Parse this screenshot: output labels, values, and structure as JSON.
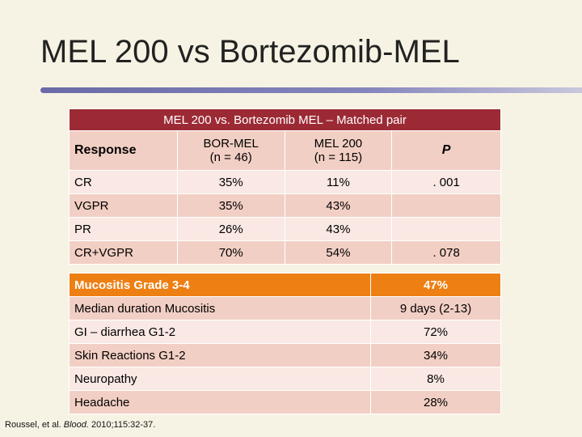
{
  "slide": {
    "title": "MEL 200 vs Bortezomib-MEL"
  },
  "response_table": {
    "caption": "MEL 200 vs. Bortezomib MEL – Matched pair",
    "headers": {
      "response": "Response",
      "bor_name": "BOR-MEL",
      "bor_n": "(n = 46)",
      "mel_name": "MEL 200",
      "mel_n": "(n = 115)",
      "p": "P"
    },
    "rows": [
      {
        "response": "CR",
        "bor": "35%",
        "mel": "11%",
        "p": ". 001"
      },
      {
        "response": "VGPR",
        "bor": "35%",
        "mel": "43%",
        "p": ""
      },
      {
        "response": "PR",
        "bor": "26%",
        "mel": "43%",
        "p": ""
      },
      {
        "response": "CR+VGPR",
        "bor": "70%",
        "mel": "54%",
        "p": ". 078"
      }
    ]
  },
  "toxicity_table": {
    "header": {
      "label": "Mucositis Grade 3-4",
      "value": "47%"
    },
    "rows": [
      {
        "label": "Median duration Mucositis",
        "value": "9 days (2-13)"
      },
      {
        "label": "GI – diarrhea G1-2",
        "value": "72%"
      },
      {
        "label": "Skin Reactions G1-2",
        "value": "34%"
      },
      {
        "label": "Neuropathy",
        "value": "8%"
      },
      {
        "label": "Headache",
        "value": "28%"
      }
    ]
  },
  "citation": {
    "authors": "Roussel, et al.",
    "journal": "Blood.",
    "ref": "2010;115:32-37."
  },
  "colors": {
    "background": "#f7f3e4",
    "caption_bar": "#9c2a35",
    "tox_header": "#ee7f13",
    "row_dark": "#f2cfc4",
    "row_light": "#f9e8e3",
    "title_rule": "#6a6aa8"
  }
}
